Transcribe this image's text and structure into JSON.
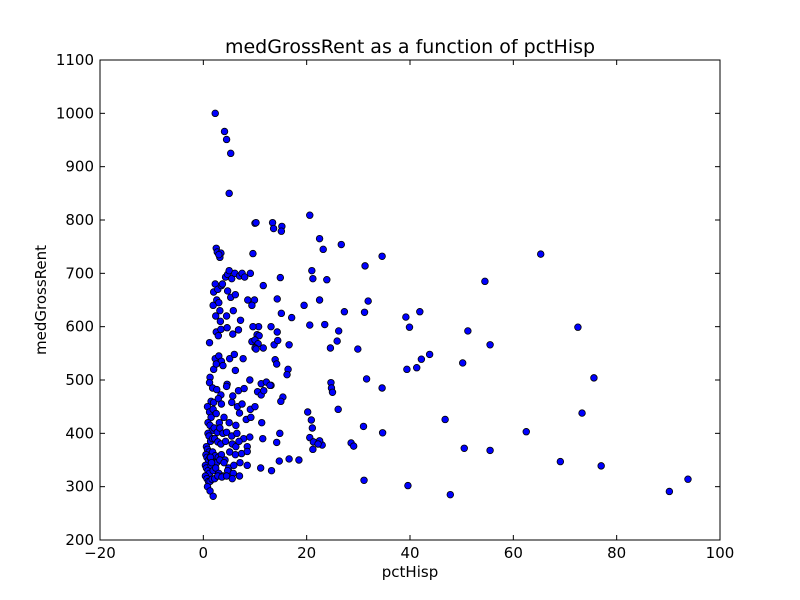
{
  "chart_data": {
    "type": "scatter",
    "title": "medGrossRent as a function of pctHisp",
    "xlabel": "pctHisp",
    "ylabel": "medGrossRent",
    "xlim": [
      -20,
      100
    ],
    "ylim": [
      200,
      1100
    ],
    "xticks": [
      "−20",
      "0",
      "20",
      "40",
      "60",
      "80",
      "100"
    ],
    "yticks": [
      "200",
      "300",
      "400",
      "500",
      "600",
      "700",
      "800",
      "900",
      "1000",
      "1100"
    ],
    "grid": false,
    "legend": "none",
    "marker_color": "#0000ff",
    "marker_edge_color": "#000000",
    "x": [
      2.3,
      4.1,
      4.5,
      5.3,
      5.0,
      10.0,
      10.2,
      13.4,
      13.6,
      15.2,
      15.1,
      20.6,
      22.5,
      23.2,
      26.7,
      34.6,
      65.3,
      2.5,
      2.7,
      3.2,
      3.4,
      3.0,
      9.6,
      31.3,
      54.5,
      23.9,
      21.0,
      21.2,
      14.9,
      2.0,
      2.3,
      2.8,
      3.5,
      4.3,
      4.7,
      5.0,
      5.5,
      6.1,
      7.0,
      7.5,
      8.0,
      9.1,
      9.9,
      11.6,
      1.9,
      2.6,
      3.0,
      3.2,
      3.7,
      4.7,
      5.3,
      6.2,
      8.6,
      9.4,
      10.7,
      14.3,
      19.5,
      22.5,
      27.3,
      31.9,
      39.2,
      41.9,
      2.4,
      3.3,
      4.5,
      5.8,
      7.2,
      9.6,
      10.4,
      10.8,
      13.1,
      14.3,
      15.1,
      17.1,
      20.6,
      23.5,
      31.2,
      39.9,
      51.2,
      72.5,
      26.2,
      2.5,
      2.9,
      3.4,
      4.6,
      5.7,
      6.8,
      9.4,
      10.0,
      10.6,
      13.7,
      14.4,
      16.6,
      24.6,
      25.9,
      29.9,
      55.5,
      1.2,
      2.3,
      3.0,
      3.5,
      5.1,
      6.0,
      7.7,
      10.0,
      10.2,
      11.6,
      13.9,
      14.2,
      16.4,
      43.8,
      42.2,
      41.3,
      39.4,
      50.2,
      1.3,
      2.0,
      2.5,
      3.8,
      4.6,
      6.2,
      9.0,
      11.2,
      12.2,
      13.1,
      16.2,
      24.7,
      31.6,
      75.6,
      1.2,
      1.8,
      2.6,
      3.4,
      4.5,
      5.7,
      6.8,
      7.9,
      10.5,
      11.2,
      12.9,
      15.4,
      24.8,
      25.0,
      34.6,
      1.5,
      2.0,
      2.9,
      3.5,
      5.5,
      6.6,
      7.5,
      9.1,
      10.0,
      11.7,
      15.0,
      20.2,
      26.1,
      73.3,
      46.8,
      0.8,
      1.2,
      1.5,
      1.9,
      2.5,
      3.1,
      4.0,
      5.0,
      6.3,
      7.0,
      8.3,
      9.2,
      11.3,
      20.9,
      31.0,
      34.7,
      0.9,
      1.3,
      1.7,
      2.1,
      2.7,
      3.2,
      3.8,
      4.5,
      5.5,
      6.5,
      7.8,
      9.0,
      14.8,
      21.1,
      22.6,
      62.5,
      0.9,
      1.1,
      1.4,
      1.8,
      2.2,
      2.8,
      3.4,
      4.3,
      5.6,
      6.3,
      6.9,
      8.5,
      11.5,
      14.2,
      20.6,
      23.0,
      28.6,
      21.2,
      22.5,
      0.6,
      0.8,
      1.1,
      1.4,
      1.8,
      2.3,
      2.9,
      3.5,
      4.2,
      5.1,
      6.2,
      7.4,
      8.5,
      29.1,
      50.5,
      55.5,
      21.3,
      22.2,
      0.5,
      0.7,
      1.0,
      1.3,
      1.6,
      2.1,
      2.6,
      3.2,
      4.0,
      4.9,
      5.9,
      7.1,
      8.5,
      16.6,
      18.5,
      14.7,
      69.1,
      77.0,
      0.4,
      0.6,
      0.9,
      1.2,
      1.5,
      1.9,
      2.4,
      3.0,
      3.8,
      4.7,
      5.8,
      7.0,
      13.2,
      11.1,
      0.4,
      0.7,
      1.0,
      1.3,
      1.7,
      2.2,
      2.8,
      3.6,
      4.5,
      5.6,
      31.1,
      93.8,
      0.8,
      1.3,
      1.9,
      39.6,
      90.2,
      47.8,
      1.4,
      1.6
    ],
    "y": [
      1000,
      966,
      951,
      925,
      850,
      794,
      795,
      795,
      784,
      788,
      779,
      809,
      765,
      745,
      754,
      732,
      736,
      747,
      740,
      730,
      738,
      735,
      737,
      714,
      685,
      688,
      705,
      690,
      692,
      665,
      680,
      670,
      677,
      693,
      698,
      705,
      690,
      700,
      695,
      700,
      693,
      700,
      650,
      677,
      640,
      650,
      645,
      630,
      680,
      667,
      655,
      660,
      650,
      640,
      600,
      652,
      640,
      650,
      628,
      648,
      618,
      628,
      620,
      610,
      620,
      630,
      612,
      600,
      585,
      583,
      600,
      590,
      625,
      617,
      603,
      604,
      627,
      599,
      592,
      599,
      592,
      590,
      583,
      595,
      598,
      586,
      594,
      572,
      575,
      568,
      566,
      574,
      566,
      560,
      573,
      558,
      566,
      570,
      540,
      545,
      535,
      540,
      548,
      540,
      560,
      558,
      560,
      538,
      530,
      520,
      548,
      539,
      523,
      520,
      532,
      505,
      520,
      530,
      527,
      492,
      518,
      500,
      493,
      496,
      490,
      510,
      495,
      502,
      504,
      495,
      485,
      482,
      472,
      488,
      470,
      480,
      484,
      478,
      472,
      490,
      468,
      485,
      477,
      485,
      460,
      458,
      465,
      455,
      458,
      450,
      455,
      445,
      450,
      480,
      460,
      440,
      445,
      438,
      426,
      450,
      440,
      430,
      445,
      437,
      420,
      430,
      420,
      415,
      438,
      426,
      430,
      420,
      425,
      413,
      401,
      420,
      415,
      405,
      410,
      402,
      410,
      400,
      402,
      395,
      400,
      390,
      393,
      400,
      410,
      382,
      403,
      400,
      395,
      385,
      390,
      390,
      384,
      380,
      385,
      380,
      375,
      385,
      375,
      390,
      383,
      392,
      378,
      382,
      370,
      386,
      375,
      370,
      365,
      360,
      365,
      358,
      355,
      360,
      350,
      365,
      360,
      362,
      366,
      376,
      372,
      368,
      384,
      380,
      360,
      355,
      350,
      355,
      348,
      344,
      345,
      350,
      345,
      335,
      340,
      345,
      340,
      352,
      350,
      348,
      347,
      339,
      340,
      335,
      330,
      325,
      340,
      330,
      335,
      325,
      320,
      330,
      325,
      320,
      330,
      335,
      320,
      315,
      310,
      310,
      314,
      315,
      320,
      318,
      320,
      315,
      312,
      314,
      300,
      292,
      282,
      302,
      291,
      285,
      355,
      345
    ]
  }
}
